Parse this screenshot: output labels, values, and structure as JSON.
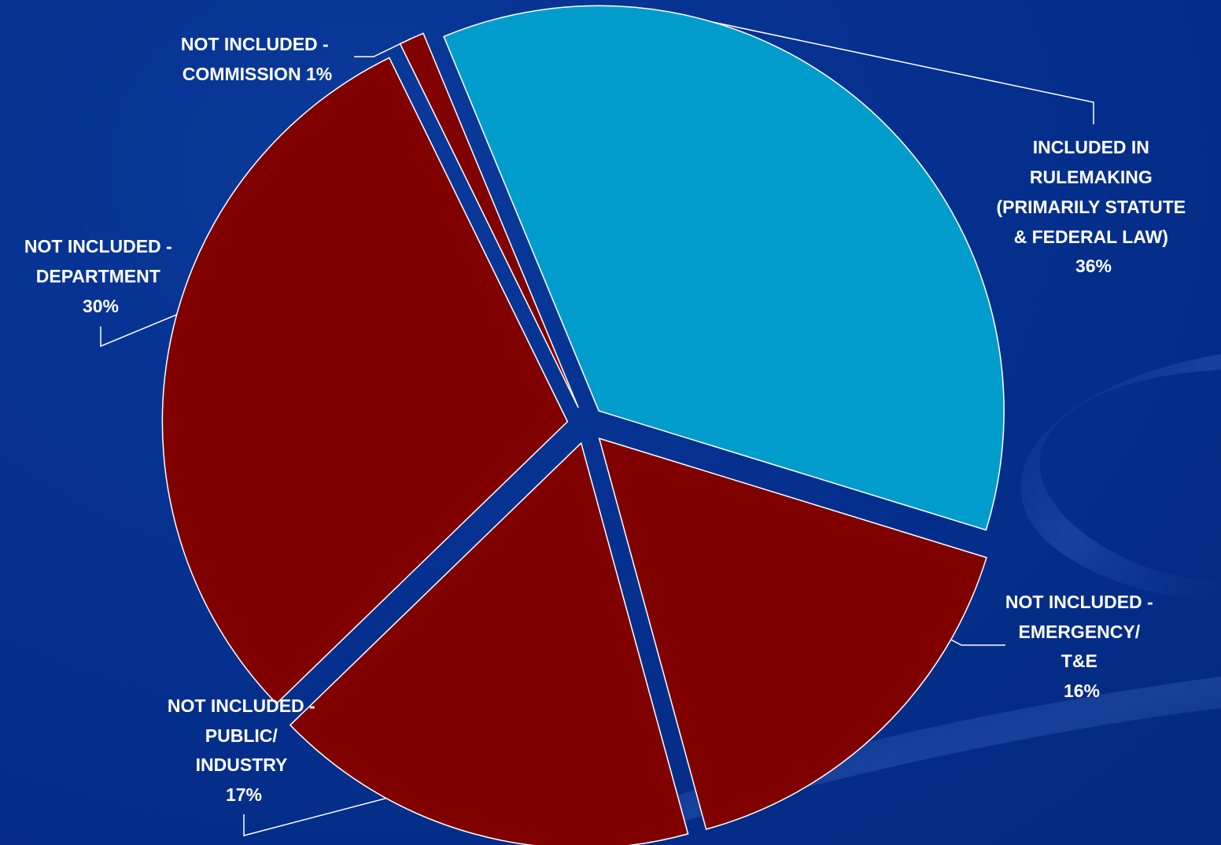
{
  "chart_data": {
    "type": "pie",
    "title": "",
    "exploded": true,
    "slices": [
      {
        "key": "rulemaking",
        "value": 36,
        "color": "#009dcc",
        "label_lines": [
          "INCLUDED IN",
          "RULEMAKING",
          "(PRIMARILY STATUTE",
          "& FEDERAL LAW)",
          "36%"
        ]
      },
      {
        "key": "emergency",
        "value": 16,
        "color": "#800000",
        "label_lines": [
          "NOT INCLUDED -",
          "EMERGENCY/",
          "T&E",
          "16%"
        ]
      },
      {
        "key": "public",
        "value": 17,
        "color": "#800000",
        "label_lines": [
          "NOT INCLUDED -",
          "PUBLIC/",
          "INDUSTRY",
          "17%"
        ]
      },
      {
        "key": "department",
        "value": 30,
        "color": "#800000",
        "label_lines": [
          "NOT INCLUDED -",
          "DEPARTMENT",
          "30%"
        ]
      },
      {
        "key": "commission",
        "value": 1,
        "color": "#800000",
        "label_lines": [
          "NOT INCLUDED -",
          "COMMISSION 1%"
        ]
      }
    ]
  },
  "colors": {
    "background": "#05308f",
    "slice_outline": "#ffffff",
    "leader_line": "#ffffff",
    "label_text": "#ffffff"
  }
}
